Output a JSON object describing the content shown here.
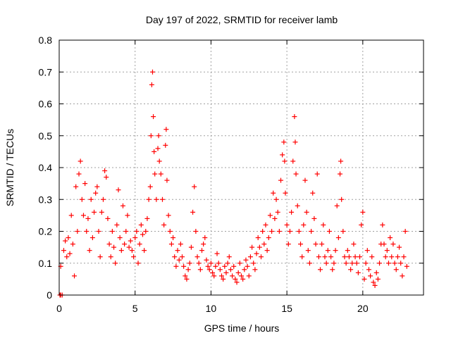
{
  "chart_data": {
    "type": "scatter",
    "title": "Day 197 of 2022, SRMTID for receiver lamb",
    "xlabel": "GPS time / hours",
    "ylabel": "SRMTID / TECUs",
    "xlim": [
      0,
      24
    ],
    "ylim": [
      0,
      0.8
    ],
    "xticks": [
      0,
      5,
      10,
      15,
      20
    ],
    "yticks": [
      0,
      0.1,
      0.2,
      0.3,
      0.4,
      0.5,
      0.6,
      0.7,
      0.8
    ],
    "xtick_labels": [
      "0",
      "5",
      "10",
      "15",
      "20"
    ],
    "ytick_labels": [
      "0",
      "0.1",
      "0.2",
      "0.3",
      "0.4",
      "0.5",
      "0.6",
      "0.7",
      "0.8"
    ],
    "grid": true,
    "marker": "plus",
    "marker_color": "#ff0000",
    "series": [
      {
        "name": "SRMTID",
        "points": [
          [
            0.05,
            0.0
          ],
          [
            0.1,
            0.0
          ],
          [
            0.2,
            0.0
          ],
          [
            0.1,
            0.09
          ],
          [
            0.3,
            0.14
          ],
          [
            0.4,
            0.17
          ],
          [
            0.5,
            0.12
          ],
          [
            0.6,
            0.18
          ],
          [
            0.7,
            0.13
          ],
          [
            0.8,
            0.25
          ],
          [
            0.9,
            0.16
          ],
          [
            1.0,
            0.06
          ],
          [
            1.1,
            0.34
          ],
          [
            1.2,
            0.2
          ],
          [
            1.3,
            0.38
          ],
          [
            1.4,
            0.42
          ],
          [
            1.5,
            0.3
          ],
          [
            1.6,
            0.25
          ],
          [
            1.7,
            0.35
          ],
          [
            1.8,
            0.2
          ],
          [
            1.9,
            0.24
          ],
          [
            2.0,
            0.14
          ],
          [
            2.1,
            0.3
          ],
          [
            2.2,
            0.18
          ],
          [
            2.3,
            0.26
          ],
          [
            2.4,
            0.32
          ],
          [
            2.5,
            0.34
          ],
          [
            2.6,
            0.2
          ],
          [
            2.7,
            0.12
          ],
          [
            2.8,
            0.26
          ],
          [
            2.9,
            0.3
          ],
          [
            3.0,
            0.39
          ],
          [
            3.1,
            0.37
          ],
          [
            3.2,
            0.24
          ],
          [
            3.3,
            0.16
          ],
          [
            3.4,
            0.12
          ],
          [
            3.5,
            0.2
          ],
          [
            3.6,
            0.15
          ],
          [
            3.7,
            0.1
          ],
          [
            3.8,
            0.22
          ],
          [
            3.9,
            0.33
          ],
          [
            4.0,
            0.18
          ],
          [
            4.1,
            0.14
          ],
          [
            4.2,
            0.28
          ],
          [
            4.3,
            0.16
          ],
          [
            4.4,
            0.2
          ],
          [
            4.5,
            0.25
          ],
          [
            4.6,
            0.15
          ],
          [
            4.7,
            0.17
          ],
          [
            4.8,
            0.14
          ],
          [
            4.9,
            0.12
          ],
          [
            5.0,
            0.18
          ],
          [
            5.1,
            0.2
          ],
          [
            5.2,
            0.1
          ],
          [
            5.3,
            0.16
          ],
          [
            5.4,
            0.22
          ],
          [
            5.5,
            0.19
          ],
          [
            5.6,
            0.14
          ],
          [
            5.7,
            0.2
          ],
          [
            5.8,
            0.24
          ],
          [
            5.9,
            0.3
          ],
          [
            6.0,
            0.34
          ],
          [
            6.05,
            0.5
          ],
          [
            6.1,
            0.66
          ],
          [
            6.15,
            0.7
          ],
          [
            6.2,
            0.56
          ],
          [
            6.25,
            0.45
          ],
          [
            6.3,
            0.38
          ],
          [
            6.4,
            0.3
          ],
          [
            6.5,
            0.46
          ],
          [
            6.55,
            0.5
          ],
          [
            6.6,
            0.42
          ],
          [
            6.7,
            0.38
          ],
          [
            6.8,
            0.3
          ],
          [
            6.9,
            0.22
          ],
          [
            7.0,
            0.47
          ],
          [
            7.05,
            0.52
          ],
          [
            7.1,
            0.36
          ],
          [
            7.2,
            0.25
          ],
          [
            7.3,
            0.2
          ],
          [
            7.4,
            0.16
          ],
          [
            7.5,
            0.18
          ],
          [
            7.6,
            0.12
          ],
          [
            7.7,
            0.09
          ],
          [
            7.8,
            0.14
          ],
          [
            7.9,
            0.11
          ],
          [
            8.0,
            0.16
          ],
          [
            8.1,
            0.12
          ],
          [
            8.2,
            0.09
          ],
          [
            8.3,
            0.06
          ],
          [
            8.4,
            0.05
          ],
          [
            8.5,
            0.08
          ],
          [
            8.6,
            0.1
          ],
          [
            8.7,
            0.15
          ],
          [
            8.8,
            0.26
          ],
          [
            8.9,
            0.34
          ],
          [
            9.0,
            0.2
          ],
          [
            9.1,
            0.12
          ],
          [
            9.2,
            0.1
          ],
          [
            9.3,
            0.08
          ],
          [
            9.4,
            0.14
          ],
          [
            9.5,
            0.16
          ],
          [
            9.6,
            0.18
          ],
          [
            9.7,
            0.11
          ],
          [
            9.8,
            0.09
          ],
          [
            9.9,
            0.08
          ],
          [
            10.0,
            0.1
          ],
          [
            10.1,
            0.07
          ],
          [
            10.2,
            0.06
          ],
          [
            10.3,
            0.09
          ],
          [
            10.4,
            0.13
          ],
          [
            10.5,
            0.1
          ],
          [
            10.6,
            0.08
          ],
          [
            10.7,
            0.06
          ],
          [
            10.8,
            0.05
          ],
          [
            10.9,
            0.09
          ],
          [
            11.0,
            0.07
          ],
          [
            11.1,
            0.1
          ],
          [
            11.2,
            0.12
          ],
          [
            11.3,
            0.08
          ],
          [
            11.4,
            0.06
          ],
          [
            11.5,
            0.09
          ],
          [
            11.6,
            0.05
          ],
          [
            11.7,
            0.04
          ],
          [
            11.8,
            0.07
          ],
          [
            11.9,
            0.1
          ],
          [
            12.0,
            0.06
          ],
          [
            12.1,
            0.05
          ],
          [
            12.2,
            0.08
          ],
          [
            12.3,
            0.11
          ],
          [
            12.4,
            0.09
          ],
          [
            12.5,
            0.06
          ],
          [
            12.6,
            0.12
          ],
          [
            12.7,
            0.15
          ],
          [
            12.8,
            0.1
          ],
          [
            12.9,
            0.08
          ],
          [
            13.0,
            0.13
          ],
          [
            13.1,
            0.18
          ],
          [
            13.2,
            0.15
          ],
          [
            13.3,
            0.12
          ],
          [
            13.4,
            0.2
          ],
          [
            13.5,
            0.16
          ],
          [
            13.6,
            0.22
          ],
          [
            13.7,
            0.14
          ],
          [
            13.8,
            0.18
          ],
          [
            13.9,
            0.25
          ],
          [
            14.0,
            0.2
          ],
          [
            14.1,
            0.32
          ],
          [
            14.2,
            0.24
          ],
          [
            14.3,
            0.3
          ],
          [
            14.4,
            0.26
          ],
          [
            14.5,
            0.2
          ],
          [
            14.6,
            0.36
          ],
          [
            14.7,
            0.44
          ],
          [
            14.8,
            0.48
          ],
          [
            14.85,
            0.42
          ],
          [
            14.9,
            0.32
          ],
          [
            15.0,
            0.22
          ],
          [
            15.1,
            0.16
          ],
          [
            15.2,
            0.2
          ],
          [
            15.3,
            0.26
          ],
          [
            15.4,
            0.42
          ],
          [
            15.5,
            0.56
          ],
          [
            15.55,
            0.48
          ],
          [
            15.6,
            0.38
          ],
          [
            15.7,
            0.28
          ],
          [
            15.8,
            0.2
          ],
          [
            15.9,
            0.16
          ],
          [
            16.0,
            0.12
          ],
          [
            16.1,
            0.22
          ],
          [
            16.2,
            0.36
          ],
          [
            16.3,
            0.26
          ],
          [
            16.4,
            0.14
          ],
          [
            16.5,
            0.1
          ],
          [
            16.6,
            0.2
          ],
          [
            16.7,
            0.32
          ],
          [
            16.8,
            0.24
          ],
          [
            16.9,
            0.16
          ],
          [
            17.0,
            0.38
          ],
          [
            17.1,
            0.12
          ],
          [
            17.2,
            0.08
          ],
          [
            17.3,
            0.16
          ],
          [
            17.4,
            0.22
          ],
          [
            17.5,
            0.12
          ],
          [
            17.6,
            0.1
          ],
          [
            17.7,
            0.14
          ],
          [
            17.8,
            0.2
          ],
          [
            17.9,
            0.12
          ],
          [
            18.0,
            0.08
          ],
          [
            18.1,
            0.1
          ],
          [
            18.2,
            0.14
          ],
          [
            18.3,
            0.28
          ],
          [
            18.4,
            0.18
          ],
          [
            18.5,
            0.38
          ],
          [
            18.55,
            0.42
          ],
          [
            18.6,
            0.3
          ],
          [
            18.7,
            0.2
          ],
          [
            18.8,
            0.12
          ],
          [
            18.9,
            0.1
          ],
          [
            19.0,
            0.14
          ],
          [
            19.1,
            0.12
          ],
          [
            19.2,
            0.08
          ],
          [
            19.3,
            0.1
          ],
          [
            19.4,
            0.16
          ],
          [
            19.5,
            0.12
          ],
          [
            19.6,
            0.1
          ],
          [
            19.7,
            0.07
          ],
          [
            19.8,
            0.12
          ],
          [
            19.9,
            0.22
          ],
          [
            20.0,
            0.26
          ],
          [
            20.1,
            0.05
          ],
          [
            20.2,
            0.1
          ],
          [
            20.3,
            0.14
          ],
          [
            20.4,
            0.08
          ],
          [
            20.5,
            0.06
          ],
          [
            20.6,
            0.12
          ],
          [
            20.7,
            0.04
          ],
          [
            20.8,
            0.03
          ],
          [
            20.9,
            0.07
          ],
          [
            21.0,
            0.05
          ],
          [
            21.1,
            0.1
          ],
          [
            21.2,
            0.16
          ],
          [
            21.3,
            0.22
          ],
          [
            21.4,
            0.16
          ],
          [
            21.5,
            0.12
          ],
          [
            21.6,
            0.14
          ],
          [
            21.7,
            0.1
          ],
          [
            21.8,
            0.18
          ],
          [
            21.9,
            0.12
          ],
          [
            22.0,
            0.16
          ],
          [
            22.1,
            0.1
          ],
          [
            22.2,
            0.08
          ],
          [
            22.3,
            0.12
          ],
          [
            22.4,
            0.15
          ],
          [
            22.5,
            0.1
          ],
          [
            22.6,
            0.06
          ],
          [
            22.7,
            0.12
          ],
          [
            22.8,
            0.2
          ],
          [
            22.9,
            0.09
          ]
        ]
      }
    ]
  }
}
